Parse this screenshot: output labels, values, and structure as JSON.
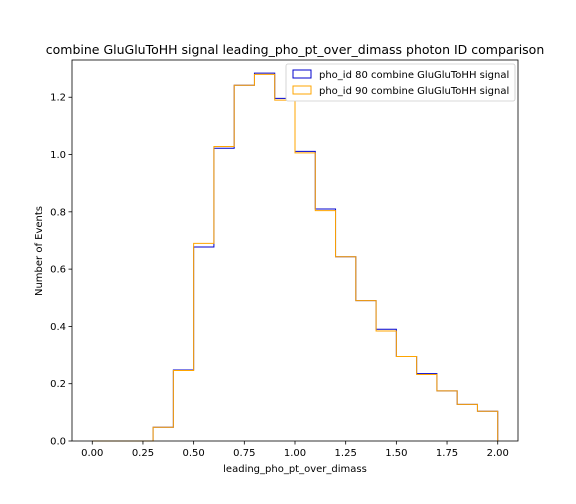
{
  "chart_data": {
    "type": "step-histogram",
    "title": "combine GluGluToHH signal leading_pho_pt_over_dimass photon ID comparison",
    "xlabel": "leading_pho_pt_over_dimass",
    "ylabel": "Number of Events",
    "xlim": [
      -0.1,
      2.1
    ],
    "ylim": [
      0,
      1.33
    ],
    "xticks": [
      "0.00",
      "0.25",
      "0.50",
      "0.75",
      "1.00",
      "1.25",
      "1.50",
      "1.75",
      "2.00"
    ],
    "yticks": [
      "0.0",
      "0.2",
      "0.4",
      "0.6",
      "0.8",
      "1.0",
      "1.2"
    ],
    "bin_edges": [
      0.0,
      0.1,
      0.2,
      0.3,
      0.4,
      0.5,
      0.6,
      0.7,
      0.8,
      0.9,
      1.0,
      1.1,
      1.2,
      1.3,
      1.4,
      1.5,
      1.6,
      1.7,
      1.8,
      1.9,
      2.0
    ],
    "legend_position": "top-right",
    "grid": false,
    "series": [
      {
        "name": "pho_id 80 combine GluGluToHH signal",
        "color": "#0000cc",
        "values": [
          0,
          0,
          0,
          0.048,
          0.248,
          0.677,
          1.022,
          1.242,
          1.284,
          1.196,
          1.011,
          0.81,
          0.643,
          0.49,
          0.39,
          0.295,
          0.235,
          0.175,
          0.128,
          0.104
        ]
      },
      {
        "name": "pho_id 90 combine GluGluToHH signal",
        "color": "#ffa500",
        "values": [
          0,
          0,
          0,
          0.048,
          0.246,
          0.69,
          1.028,
          1.242,
          1.28,
          1.19,
          1.006,
          0.804,
          0.643,
          0.49,
          0.384,
          0.295,
          0.232,
          0.175,
          0.128,
          0.104
        ]
      }
    ]
  }
}
